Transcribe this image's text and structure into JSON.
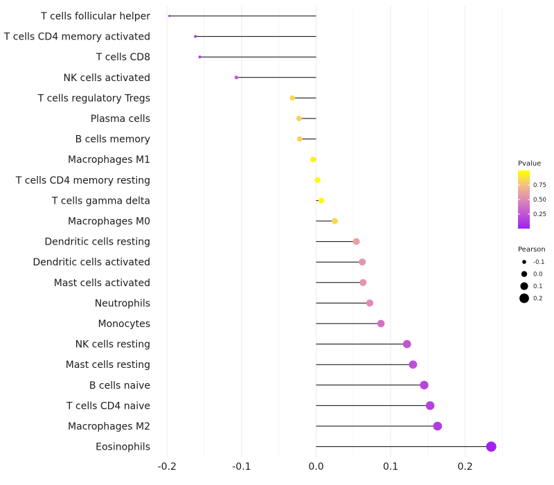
{
  "chart_data": {
    "type": "lollipop",
    "title": "",
    "xlabel": "",
    "ylabel": "",
    "xlim": [
      -0.2,
      0.25
    ],
    "x_ticks": [
      -0.2,
      -0.1,
      0.0,
      0.1,
      0.2
    ],
    "x_tick_labels": [
      "-0.2",
      "-0.1",
      "0.0",
      "0.1",
      "0.2"
    ],
    "categories": [
      "T cells follicular helper",
      "T cells CD4 memory activated",
      "T cells CD8",
      "NK cells activated",
      "T cells regulatory  Tregs ",
      "Plasma cells",
      "B cells memory",
      "Macrophages M1",
      "T cells CD4 memory resting",
      "T cells gamma delta",
      "Macrophages M0",
      "Dendritic cells resting",
      "Dendritic cells activated",
      "Mast cells activated",
      "Neutrophils",
      "Monocytes",
      "NK cells resting",
      "Mast cells resting",
      "B cells naive",
      "T cells CD4 naive",
      "Macrophages M2",
      "Eosinophils"
    ],
    "pearson": [
      -0.197,
      -0.162,
      -0.156,
      -0.107,
      -0.032,
      -0.023,
      -0.022,
      -0.004,
      0.002,
      0.007,
      0.025,
      0.054,
      0.062,
      0.063,
      0.072,
      0.087,
      0.122,
      0.13,
      0.145,
      0.153,
      0.163,
      0.235
    ],
    "pvalue": [
      0.02,
      0.1,
      0.12,
      0.3,
      0.85,
      0.82,
      0.83,
      0.95,
      0.97,
      0.97,
      0.84,
      0.6,
      0.55,
      0.55,
      0.5,
      0.38,
      0.25,
      0.22,
      0.18,
      0.16,
      0.13,
      0.01
    ],
    "color_legend": {
      "title": "Pvalue",
      "ticks": [
        0.25,
        0.5,
        0.75
      ],
      "tick_labels": [
        "0.25",
        "0.50",
        "0.75"
      ],
      "range": [
        0,
        1
      ],
      "low_color": "#a020f0",
      "mid_color": "#e8a0a0",
      "high_color": "#ffff00"
    },
    "size_legend": {
      "title": "Pearson",
      "values": [
        -0.1,
        0.0,
        0.1,
        0.2
      ],
      "labels": [
        "-0.1",
        "0.0",
        "0.1",
        "0.2"
      ]
    },
    "grid": true,
    "legend_position": "right"
  }
}
